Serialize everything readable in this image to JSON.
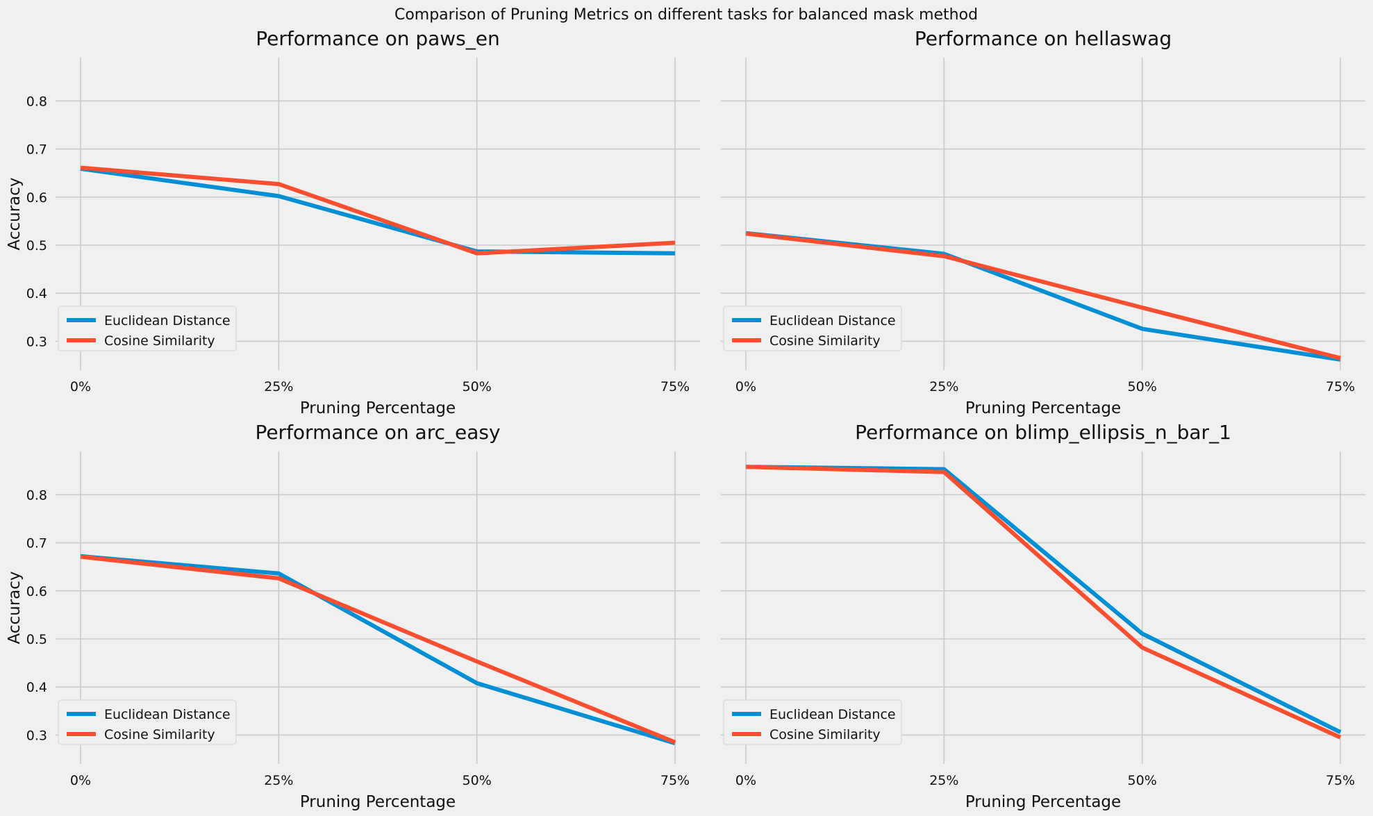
{
  "figure": {
    "suptitle": "Comparison of Pruning Metrics on different tasks for balanced mask method",
    "background": "#f0f0f0",
    "grid_color": "#cbcbcb"
  },
  "chart_data": [
    {
      "type": "line",
      "title": "Performance on paws_en",
      "xlabel": "Pruning Percentage",
      "ylabel": "Accuracy",
      "categories": [
        "0%",
        "25%",
        "50%",
        "75%"
      ],
      "yticks": [
        "0.3",
        "0.4",
        "0.5",
        "0.6",
        "0.7",
        "0.8"
      ],
      "ylim": [
        0.24,
        0.89
      ],
      "grid": true,
      "legend": "lower left",
      "series": [
        {
          "name": "Euclidean Distance",
          "color": "#008fd5",
          "values": [
            0.659,
            0.602,
            0.487,
            0.483
          ]
        },
        {
          "name": "Cosine Similarity",
          "color": "#fc4f30",
          "values": [
            0.661,
            0.627,
            0.483,
            0.505
          ]
        }
      ]
    },
    {
      "type": "line",
      "title": "Performance on hellaswag",
      "xlabel": "Pruning Percentage",
      "ylabel": "",
      "categories": [
        "0%",
        "25%",
        "50%",
        "75%"
      ],
      "yticks": [],
      "ylim": [
        0.24,
        0.89
      ],
      "grid": true,
      "legend": "lower left",
      "series": [
        {
          "name": "Euclidean Distance",
          "color": "#008fd5",
          "values": [
            0.525,
            0.482,
            0.326,
            0.262
          ]
        },
        {
          "name": "Cosine Similarity",
          "color": "#fc4f30",
          "values": [
            0.524,
            0.477,
            0.37,
            0.265
          ]
        }
      ]
    },
    {
      "type": "line",
      "title": "Performance on arc_easy",
      "xlabel": "Pruning Percentage",
      "ylabel": "Accuracy",
      "categories": [
        "0%",
        "25%",
        "50%",
        "75%"
      ],
      "yticks": [
        "0.3",
        "0.4",
        "0.5",
        "0.6",
        "0.7",
        "0.8"
      ],
      "ylim": [
        0.24,
        0.89
      ],
      "grid": true,
      "legend": "lower left",
      "series": [
        {
          "name": "Euclidean Distance",
          "color": "#008fd5",
          "values": [
            0.672,
            0.636,
            0.408,
            0.283
          ]
        },
        {
          "name": "Cosine Similarity",
          "color": "#fc4f30",
          "values": [
            0.671,
            0.626,
            0.453,
            0.285
          ]
        }
      ]
    },
    {
      "type": "line",
      "title": "Performance on blimp_ellipsis_n_bar_1",
      "xlabel": "Pruning Percentage",
      "ylabel": "",
      "categories": [
        "0%",
        "25%",
        "50%",
        "75%"
      ],
      "yticks": [],
      "ylim": [
        0.24,
        0.89
      ],
      "grid": true,
      "legend": "lower left",
      "series": [
        {
          "name": "Euclidean Distance",
          "color": "#008fd5",
          "values": [
            0.858,
            0.853,
            0.511,
            0.306
          ]
        },
        {
          "name": "Cosine Similarity",
          "color": "#fc4f30",
          "values": [
            0.858,
            0.847,
            0.482,
            0.295
          ]
        }
      ]
    }
  ]
}
